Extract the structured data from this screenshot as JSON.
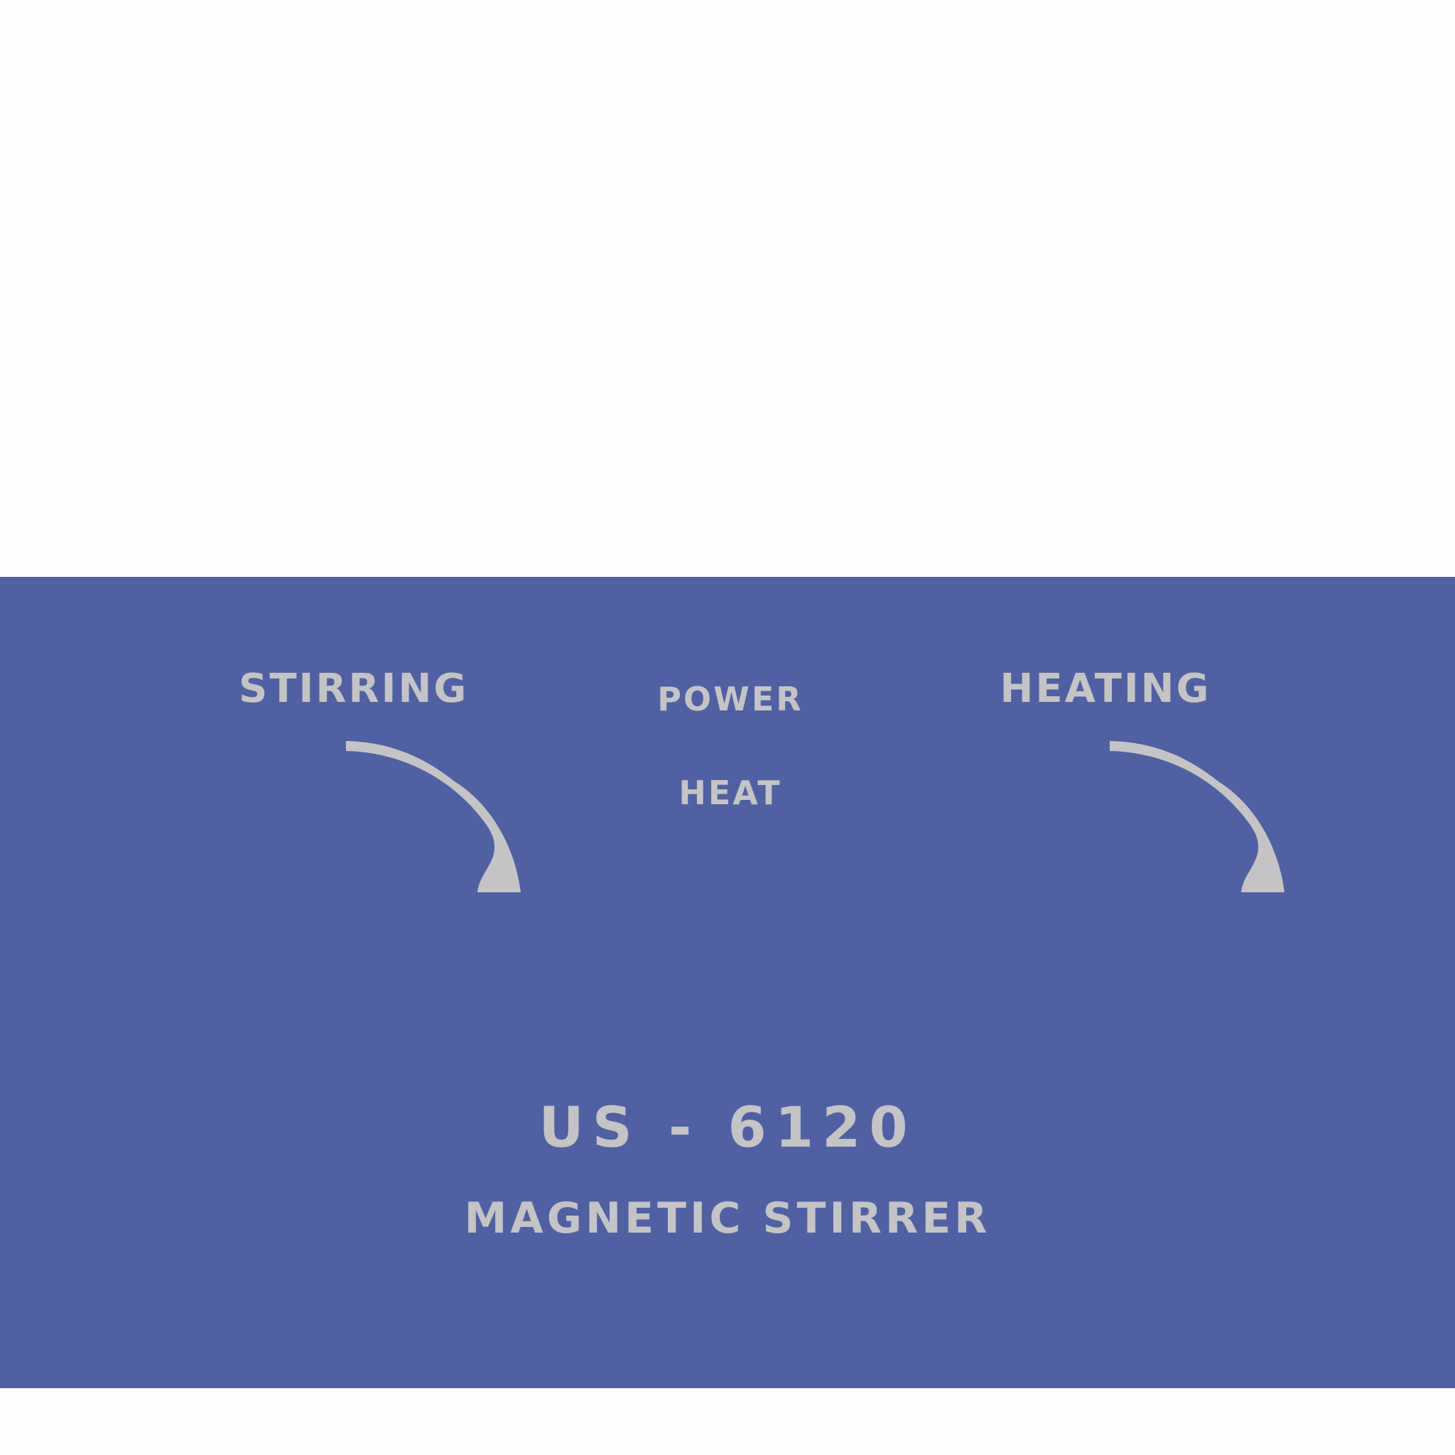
{
  "panel": {
    "background": "#5160a2",
    "text_color": "#c4c4c6",
    "labels": {
      "stirring": "STIRRING",
      "power": "POWER",
      "heat": "HEAT",
      "heating": "HEATING",
      "model": "US - 6120",
      "product": "MAGNETIC STIRRER"
    },
    "dials": [
      {
        "name": "stirring-dial",
        "icon": "dial-arc"
      },
      {
        "name": "heating-dial",
        "icon": "dial-arc"
      }
    ]
  }
}
